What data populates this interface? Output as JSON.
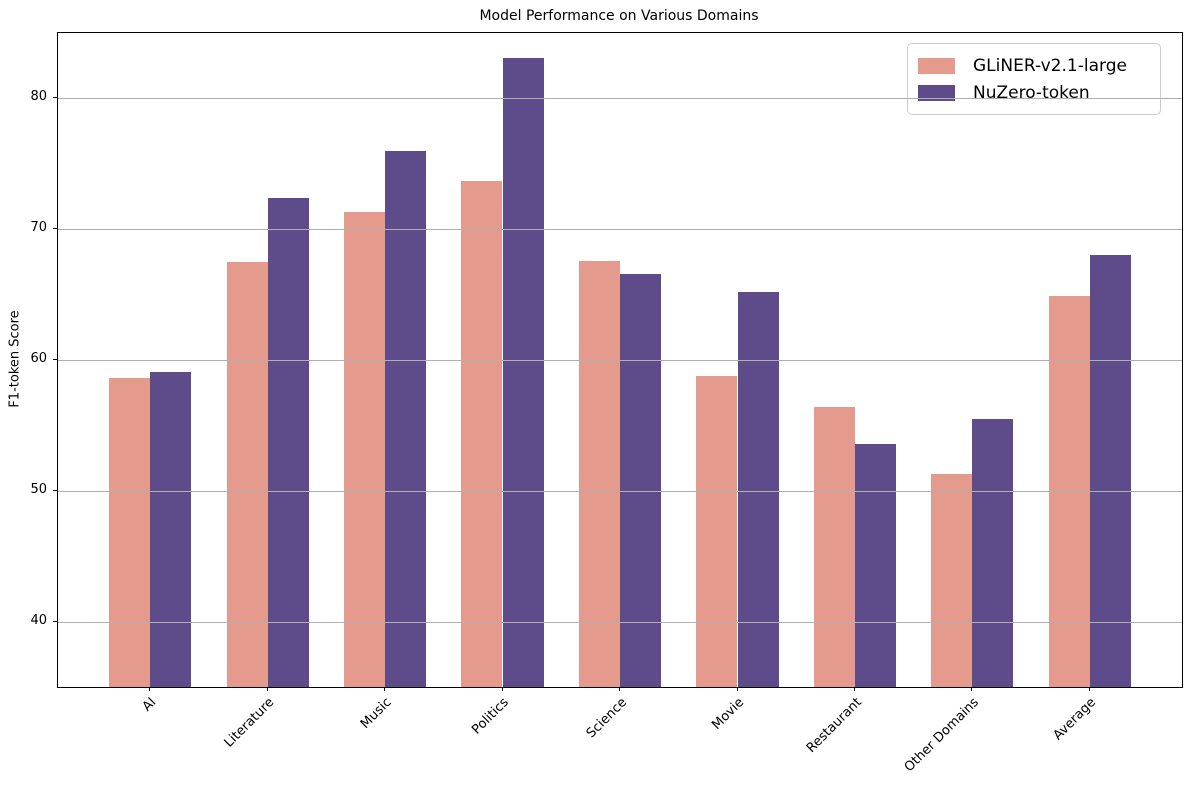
{
  "chart_data": {
    "type": "bar",
    "title": "Model Performance on Various Domains",
    "xlabel": "",
    "ylabel": "F1-token Score",
    "categories": [
      "AI",
      "Literature",
      "Music",
      "Politics",
      "Science",
      "Movie",
      "Restaurant",
      "Other Domains",
      "Average"
    ],
    "series": [
      {
        "name": "GLiNER-v2.1-large",
        "color": "#E49A8C",
        "values": [
          58.6,
          67.5,
          71.3,
          73.7,
          67.6,
          58.8,
          56.4,
          51.3,
          64.9
        ]
      },
      {
        "name": "NuZero-token",
        "color": "#5E4C8A",
        "values": [
          59.1,
          72.4,
          76.0,
          83.1,
          66.6,
          65.2,
          53.6,
          55.5,
          68.0
        ]
      }
    ],
    "ylim": [
      35,
      85
    ],
    "yticks": [
      40,
      50,
      60,
      70,
      80
    ],
    "grid": true,
    "grid_axis": "y",
    "grid_color": "#b0b0b0",
    "legend_position": "upper right",
    "bar_width_fraction": 0.35
  }
}
